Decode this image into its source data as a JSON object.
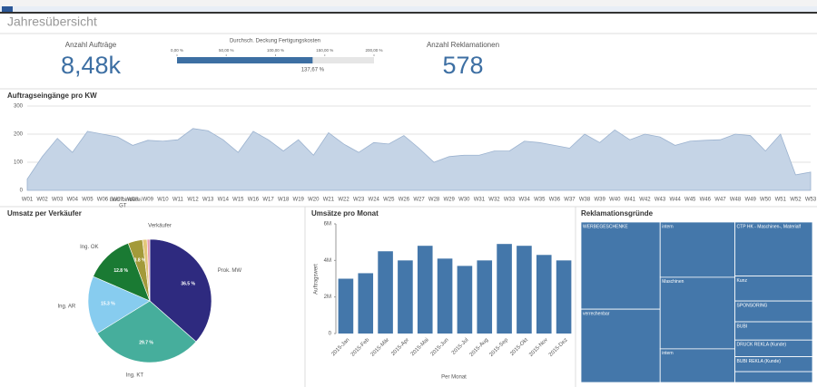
{
  "page_title": "Jahresübersicht",
  "kpis": [
    {
      "label": "Anzahl Aufträge",
      "value": 8480,
      "value_label": "8,48k"
    },
    {
      "label": "Anzahl Reklamationen",
      "value": 578
    }
  ],
  "gauge": {
    "title": "Durchsch. Deckung Fertigungskosten",
    "value": 137.67,
    "value_label": "137,67 %",
    "xlim": [
      0,
      200
    ],
    "xticks": [
      {
        "value": 0,
        "label": "0,00 %"
      },
      {
        "value": 50,
        "label": "50,00 %"
      },
      {
        "value": 100,
        "label": "100,00 %"
      },
      {
        "value": 150,
        "label": "150,00 %"
      },
      {
        "value": 200,
        "label": "200,00 %"
      }
    ],
    "color": "#3d6fa3"
  },
  "chart_data": [
    {
      "type": "area",
      "title": "Auftragseingänge pro KW",
      "categories": [
        "W01",
        "W02",
        "W03",
        "W04",
        "W05",
        "W06",
        "W07",
        "W08",
        "W09",
        "W10",
        "W11",
        "W12",
        "W13",
        "W14",
        "W15",
        "W16",
        "W17",
        "W18",
        "W19",
        "W20",
        "W21",
        "W22",
        "W23",
        "W24",
        "W25",
        "W26",
        "W27",
        "W28",
        "W29",
        "W30",
        "W31",
        "W32",
        "W33",
        "W34",
        "W35",
        "W36",
        "W37",
        "W38",
        "W39",
        "W40",
        "W41",
        "W42",
        "W43",
        "W44",
        "W45",
        "W46",
        "W47",
        "W48",
        "W49",
        "W50",
        "W51",
        "W52",
        "W53"
      ],
      "values": [
        40,
        120,
        185,
        135,
        210,
        200,
        190,
        160,
        178,
        175,
        180,
        220,
        212,
        180,
        135,
        210,
        180,
        140,
        180,
        125,
        205,
        165,
        135,
        170,
        165,
        195,
        150,
        100,
        120,
        125,
        125,
        140,
        140,
        175,
        170,
        160,
        150,
        200,
        170,
        215,
        180,
        200,
        190,
        160,
        175,
        178,
        180,
        200,
        195,
        140,
        200,
        55,
        65
      ],
      "ylim": [
        0,
        300
      ],
      "yticks": [
        0,
        100,
        200,
        300
      ],
      "grid": true,
      "color": "#c5d4e6"
    },
    {
      "type": "pie",
      "title": "Umsatz per Verkäufer",
      "legend_title": "Verkäufer",
      "categories": [
        "Prok. MW",
        "Ing. KT",
        "Ing. AR",
        "Ing. OK",
        "GT",
        "Buchbinderei",
        null
      ],
      "values": [
        36.5,
        29.7,
        15.3,
        12.8,
        3.8,
        1.2,
        0.7
      ],
      "value_labels": [
        "36.5 %",
        "29.7 %",
        "15.3 %",
        "12.8 %",
        "3.8 %",
        null,
        null
      ],
      "colors": [
        "#2e2a7f",
        "#46ae9c",
        "#87ccef",
        "#1a7a33",
        "#a39a3a",
        "#e3c77a",
        "#e59ab0"
      ]
    },
    {
      "type": "bar",
      "title": "Umsätze pro Monat",
      "y_label": "Auftragswert",
      "x_label": "Per Monat",
      "categories": [
        "2015-Jan",
        "2015-Feb",
        "2015-Mär",
        "2015-Apr",
        "2015-Mai",
        "2015-Jun",
        "2015-Jul",
        "2015-Aug",
        "2015-Sep",
        "2015-Okt",
        "2015-Nov",
        "2015-Dez"
      ],
      "values": [
        3000000,
        3300000,
        4500000,
        4000000,
        4800000,
        4100000,
        3700000,
        4000000,
        4900000,
        4800000,
        4300000,
        4000000
      ],
      "ylim": [
        0,
        6000000
      ],
      "yticks": [
        0,
        {
          "value": 2000000,
          "label": "2M"
        },
        {
          "value": 4000000,
          "label": "4M"
        },
        {
          "value": 6000000,
          "label": "6M"
        }
      ],
      "color": "#4477aa"
    },
    {
      "type": "treemap",
      "title": "Reklamationsgründe",
      "color": "#4477aa",
      "groups": [
        {
          "categories": [
            "WERBEGESCHENKE",
            "verrechenbar"
          ],
          "values": [
            107,
            90
          ]
        },
        {
          "categories": [
            "intern",
            "Maschinen",
            "intern"
          ],
          "values": [
            64,
            83,
            39
          ]
        },
        {
          "categories": [
            "CTP HK - Maschinen-, Materialf",
            "Kunz",
            "SPONSORING",
            "BUBI",
            "DRUCK REKLA (Kunde)",
            "BUBI REKLA (Kunde)",
            null
          ],
          "values": [
            65,
            30,
            25,
            22,
            20,
            18,
            13
          ]
        }
      ]
    }
  ]
}
